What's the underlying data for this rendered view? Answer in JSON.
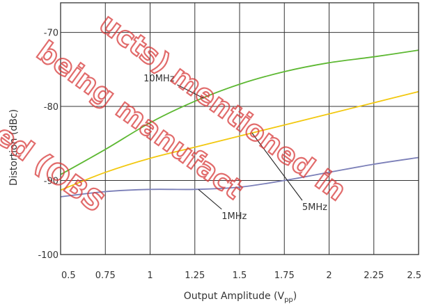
{
  "chart_data": {
    "type": "line",
    "xlabel": "Output Amplitude (V",
    "xlabel_subscript": "pp",
    "xlabel_close": ")",
    "ylabel": "Distortion (dBc)",
    "xlim": [
      0.5,
      2.5
    ],
    "ylim": [
      -100,
      -66
    ],
    "grid": true,
    "x_ticks": [
      "0.5",
      "0.75",
      "1",
      "1.25",
      "1.5",
      "1.75",
      "2",
      "2.25",
      "2.5"
    ],
    "y_ticks": [
      "-70",
      "-80",
      "-90",
      "-100"
    ],
    "series": [
      {
        "name": "10MHz",
        "color": "#5db832",
        "x": [
          0.5,
          0.75,
          1.0,
          1.25,
          1.5,
          1.75,
          2.0,
          2.25,
          2.5
        ],
        "y": [
          -89.2,
          -85.8,
          -82.2,
          -79.3,
          -77.0,
          -75.3,
          -74.1,
          -73.3,
          -72.4
        ]
      },
      {
        "name": "5MHz",
        "color": "#f2c80f",
        "x": [
          0.5,
          0.75,
          1.0,
          1.25,
          1.5,
          1.75,
          2.0,
          2.25,
          2.5
        ],
        "y": [
          -91.3,
          -88.9,
          -87.0,
          -85.5,
          -84.0,
          -82.5,
          -81.0,
          -79.5,
          -78.0
        ]
      },
      {
        "name": "1MHz",
        "color": "#7b7fb8",
        "x": [
          0.5,
          0.75,
          1.0,
          1.25,
          1.5,
          1.75,
          2.0,
          2.25,
          2.5
        ],
        "y": [
          -92.2,
          -91.5,
          -91.2,
          -91.2,
          -90.9,
          -90.0,
          -88.9,
          -87.8,
          -86.9
        ]
      }
    ],
    "annotations": [
      {
        "text": "10MHz",
        "series": "10MHz",
        "label_x": 1.05,
        "label_y": -76.6,
        "point_x": 1.3,
        "point_y": -78.9
      },
      {
        "text": "5MHz",
        "series": "5MHz",
        "label_x": 1.92,
        "label_y": -94.0,
        "point_x": 1.57,
        "point_y": -83.6
      },
      {
        "text": "1MHz",
        "series": "1MHz",
        "label_x": 1.47,
        "label_y": -95.2,
        "point_x": 1.27,
        "point_y": -91.2
      }
    ]
  },
  "watermark": {
    "lines": [
      "ucts) mentioned in",
      "being manufact",
      "ed (OBS"
    ],
    "color": "#d83a3a"
  }
}
